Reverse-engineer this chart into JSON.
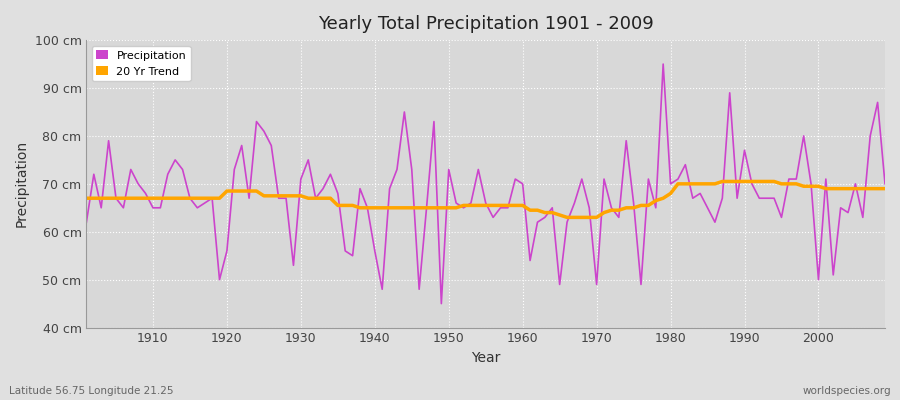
{
  "title": "Yearly Total Precipitation 1901 - 2009",
  "xlabel": "Year",
  "ylabel": "Precipitation",
  "bottom_left": "Latitude 56.75 Longitude 21.25",
  "bottom_right": "worldspecies.org",
  "ylim": [
    40,
    100
  ],
  "yticks": [
    40,
    50,
    60,
    70,
    80,
    90,
    100
  ],
  "ytick_labels": [
    "40 cm",
    "50 cm",
    "60 cm",
    "70 cm",
    "80 cm",
    "90 cm",
    "100 cm"
  ],
  "xlim": [
    1901,
    2009
  ],
  "precipitation_color": "#CC44CC",
  "trend_color": "#FFA500",
  "bg_color": "#E0E0E0",
  "plot_bg_color": "#D8D8D8",
  "legend_labels": [
    "Precipitation",
    "20 Yr Trend"
  ],
  "years": [
    1901,
    1902,
    1903,
    1904,
    1905,
    1906,
    1907,
    1908,
    1909,
    1910,
    1911,
    1912,
    1913,
    1914,
    1915,
    1916,
    1917,
    1918,
    1919,
    1920,
    1921,
    1922,
    1923,
    1924,
    1925,
    1926,
    1927,
    1928,
    1929,
    1930,
    1931,
    1932,
    1933,
    1934,
    1935,
    1936,
    1937,
    1938,
    1939,
    1940,
    1941,
    1942,
    1943,
    1944,
    1945,
    1946,
    1947,
    1948,
    1949,
    1950,
    1951,
    1952,
    1953,
    1954,
    1955,
    1956,
    1957,
    1958,
    1959,
    1960,
    1961,
    1962,
    1963,
    1964,
    1965,
    1966,
    1967,
    1968,
    1969,
    1970,
    1971,
    1972,
    1973,
    1974,
    1975,
    1976,
    1977,
    1978,
    1979,
    1980,
    1981,
    1982,
    1983,
    1984,
    1985,
    1986,
    1987,
    1988,
    1989,
    1990,
    1991,
    1992,
    1993,
    1994,
    1995,
    1996,
    1997,
    1998,
    1999,
    2000,
    2001,
    2002,
    2003,
    2004,
    2005,
    2006,
    2007,
    2008,
    2009
  ],
  "precipitation": [
    62,
    72,
    65,
    79,
    67,
    65,
    73,
    70,
    68,
    65,
    65,
    72,
    75,
    73,
    67,
    65,
    66,
    67,
    50,
    56,
    73,
    78,
    67,
    83,
    81,
    78,
    67,
    67,
    53,
    71,
    75,
    67,
    69,
    72,
    68,
    56,
    55,
    69,
    65,
    56,
    48,
    69,
    73,
    85,
    73,
    48,
    65,
    83,
    45,
    73,
    66,
    65,
    66,
    73,
    66,
    63,
    65,
    65,
    71,
    70,
    54,
    62,
    63,
    65,
    49,
    62,
    66,
    71,
    65,
    49,
    71,
    65,
    63,
    79,
    66,
    49,
    71,
    65,
    95,
    70,
    71,
    74,
    67,
    68,
    65,
    62,
    67,
    89,
    67,
    77,
    70,
    67,
    67,
    67,
    63,
    71,
    71,
    80,
    70,
    50,
    71,
    51,
    65,
    64,
    70,
    63,
    80,
    87,
    70
  ],
  "trend": [
    67.0,
    67.0,
    67.0,
    67.0,
    67.0,
    67.0,
    67.0,
    67.0,
    67.0,
    67.0,
    67.0,
    67.0,
    67.0,
    67.0,
    67.0,
    67.0,
    67.0,
    67.0,
    67.0,
    68.5,
    68.5,
    68.5,
    68.5,
    68.5,
    67.5,
    67.5,
    67.5,
    67.5,
    67.5,
    67.5,
    67.0,
    67.0,
    67.0,
    67.0,
    65.5,
    65.5,
    65.5,
    65.0,
    65.0,
    65.0,
    65.0,
    65.0,
    65.0,
    65.0,
    65.0,
    65.0,
    65.0,
    65.0,
    65.0,
    65.0,
    65.0,
    65.5,
    65.5,
    65.5,
    65.5,
    65.5,
    65.5,
    65.5,
    65.5,
    65.5,
    64.5,
    64.5,
    64.0,
    64.0,
    63.5,
    63.0,
    63.0,
    63.0,
    63.0,
    63.0,
    64.0,
    64.5,
    64.5,
    65.0,
    65.0,
    65.5,
    65.5,
    66.5,
    67.0,
    68.0,
    70.0,
    70.0,
    70.0,
    70.0,
    70.0,
    70.0,
    70.5,
    70.5,
    70.5,
    70.5,
    70.5,
    70.5,
    70.5,
    70.5,
    70.0,
    70.0,
    70.0,
    69.5,
    69.5,
    69.5,
    69.0,
    69.0,
    69.0,
    69.0,
    69.0,
    69.0,
    69.0,
    69.0,
    69.0
  ]
}
